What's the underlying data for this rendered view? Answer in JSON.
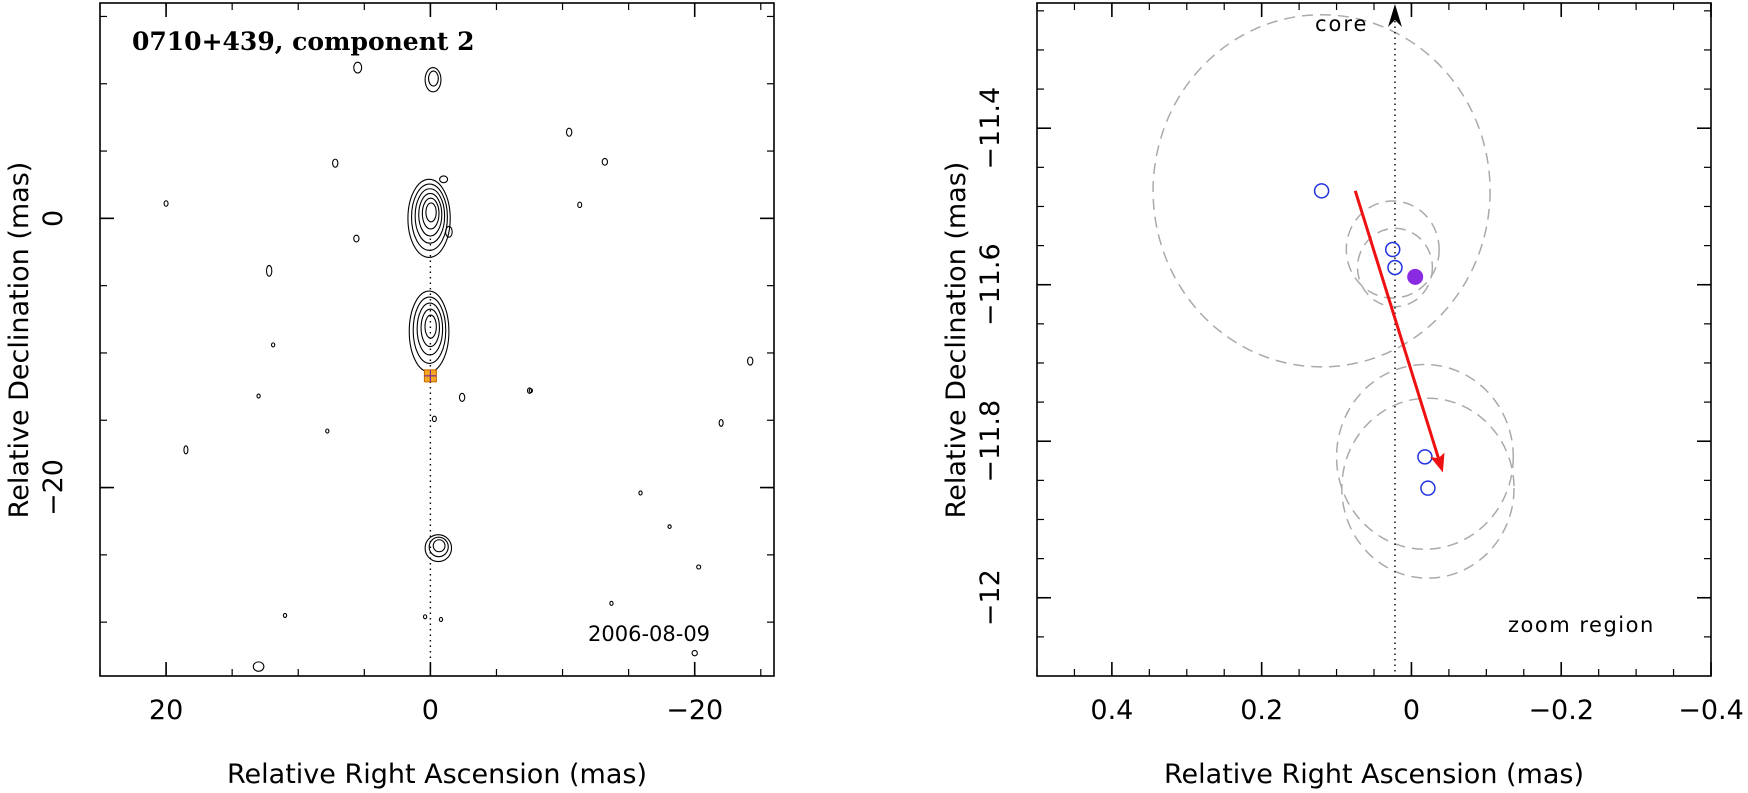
{
  "chart_data": [
    {
      "type": "scatter",
      "title": "0710+439, component 2",
      "date": "2006-08-09",
      "xlabel": "Relative Right Ascension (mas)",
      "ylabel": "Relative Declination (mas)",
      "xlim": [
        25,
        -26
      ],
      "ylim": [
        -34,
        16
      ],
      "x_reversed": true,
      "xticks": [
        "20",
        "0",
        "−20"
      ],
      "yticks": [
        "0",
        "−20"
      ],
      "xtick_values": [
        20,
        0,
        -20
      ],
      "ytick_values": [
        0,
        -20
      ],
      "reference_line": {
        "x": 0,
        "style": "dotted"
      },
      "marker": {
        "x": 0,
        "y": -11.7,
        "shape": "square",
        "color": "#f5a623"
      },
      "contour_blobs": [
        {
          "x": 0.1,
          "y": 0.0,
          "rx": 1.6,
          "ry": 2.9,
          "levels": 6
        },
        {
          "x": 0.1,
          "y": -8.4,
          "rx": 1.5,
          "ry": 3.0,
          "levels": 5
        },
        {
          "x": -0.6,
          "y": -24.5,
          "rx": 1.0,
          "ry": 1.0,
          "levels": 3
        },
        {
          "x": -0.2,
          "y": 10.3,
          "rx": 0.6,
          "ry": 0.9,
          "levels": 2
        },
        {
          "x": 5.5,
          "y": 11.2,
          "rx": 0.3,
          "ry": 0.4,
          "levels": 1
        },
        {
          "x": -1.0,
          "y": 2.9,
          "rx": 0.3,
          "ry": 0.25,
          "levels": 1
        },
        {
          "x": 7.2,
          "y": 4.1,
          "rx": 0.2,
          "ry": 0.3,
          "levels": 1
        },
        {
          "x": -10.5,
          "y": 6.4,
          "rx": 0.2,
          "ry": 0.3,
          "levels": 1
        },
        {
          "x": -13.2,
          "y": 4.2,
          "rx": 0.2,
          "ry": 0.25,
          "levels": 1
        },
        {
          "x": -11.3,
          "y": 1.0,
          "rx": 0.15,
          "ry": 0.2,
          "levels": 1
        },
        {
          "x": 5.6,
          "y": -1.5,
          "rx": 0.2,
          "ry": 0.25,
          "levels": 1
        },
        {
          "x": -1.4,
          "y": -1.0,
          "rx": 0.25,
          "ry": 0.4,
          "levels": 1
        },
        {
          "x": -2.4,
          "y": -13.3,
          "rx": 0.2,
          "ry": 0.3,
          "levels": 1
        },
        {
          "x": 20.0,
          "y": 1.1,
          "rx": 0.15,
          "ry": 0.2,
          "levels": 1
        },
        {
          "x": -7.5,
          "y": -12.8,
          "rx": 0.15,
          "ry": 0.2,
          "levels": 1
        },
        {
          "x": -22.0,
          "y": -15.2,
          "rx": 0.15,
          "ry": 0.25,
          "levels": 1
        },
        {
          "x": -24.2,
          "y": -10.6,
          "rx": 0.2,
          "ry": 0.3,
          "levels": 1
        },
        {
          "x": 18.5,
          "y": -17.2,
          "rx": 0.15,
          "ry": 0.3,
          "levels": 1
        },
        {
          "x": 7.8,
          "y": -15.8,
          "rx": 0.1,
          "ry": 0.15,
          "levels": 1
        },
        {
          "x": -0.3,
          "y": -14.9,
          "rx": 0.15,
          "ry": 0.2,
          "levels": 1
        },
        {
          "x": -15.9,
          "y": -20.4,
          "rx": 0.12,
          "ry": 0.15,
          "levels": 1
        },
        {
          "x": 12.2,
          "y": -3.9,
          "rx": 0.2,
          "ry": 0.4,
          "levels": 1
        },
        {
          "x": 13.0,
          "y": -13.2,
          "rx": 0.1,
          "ry": 0.15,
          "levels": 1
        },
        {
          "x": 13.0,
          "y": -33.3,
          "rx": 0.4,
          "ry": 0.35,
          "levels": 1
        },
        {
          "x": -20.3,
          "y": -25.9,
          "rx": 0.15,
          "ry": 0.15,
          "levels": 1
        },
        {
          "x": -18.1,
          "y": -22.9,
          "rx": 0.1,
          "ry": 0.12,
          "levels": 1
        },
        {
          "x": -20.0,
          "y": -32.3,
          "rx": 0.2,
          "ry": 0.2,
          "levels": 1
        },
        {
          "x": -13.7,
          "y": -28.6,
          "rx": 0.12,
          "ry": 0.15,
          "levels": 1
        },
        {
          "x": 11.0,
          "y": -29.5,
          "rx": 0.12,
          "ry": 0.15,
          "levels": 1
        },
        {
          "x": -0.8,
          "y": -29.8,
          "rx": 0.12,
          "ry": 0.15,
          "levels": 1
        },
        {
          "x": -7.6,
          "y": -12.8,
          "rx": 0.12,
          "ry": 0.15,
          "levels": 1
        },
        {
          "x": 11.9,
          "y": -9.4,
          "rx": 0.12,
          "ry": 0.15,
          "levels": 1
        },
        {
          "x": 0.4,
          "y": -29.6,
          "rx": 0.12,
          "ry": 0.15,
          "levels": 1
        }
      ]
    },
    {
      "type": "scatter",
      "xlabel": "Relative Right Ascension (mas)",
      "ylabel": "Relative Declination (mas)",
      "annotation_core": "core",
      "annotation_zoom": "zoom region",
      "xlim": [
        0.5,
        -0.4
      ],
      "ylim": [
        -12.1,
        -11.24
      ],
      "x_reversed": true,
      "xticks": [
        "0.4",
        "0.2",
        "0",
        "−0.2",
        "−0.4"
      ],
      "xtick_values": [
        0.4,
        0.2,
        0,
        -0.2,
        -0.4
      ],
      "yticks": [
        "−11.4",
        "−11.6",
        "−11.8",
        "−12"
      ],
      "ytick_values": [
        -11.4,
        -11.6,
        -11.8,
        -12.0
      ],
      "core_line": {
        "x": 0.022
      },
      "open_points": [
        {
          "x": 0.12,
          "y": -11.48
        },
        {
          "x": 0.025,
          "y": -11.555
        },
        {
          "x": 0.022,
          "y": -11.578
        },
        {
          "x": -0.018,
          "y": -11.82
        },
        {
          "x": -0.022,
          "y": -11.86
        }
      ],
      "filled_point": {
        "x": -0.005,
        "y": -11.59,
        "color": "#8a2be2"
      },
      "uncertainty_circles": [
        {
          "x": 0.12,
          "y": -11.48,
          "r": 0.225
        },
        {
          "x": 0.025,
          "y": -11.555,
          "r": 0.062
        },
        {
          "x": 0.022,
          "y": -11.578,
          "r": 0.05
        },
        {
          "x": -0.018,
          "y": -11.82,
          "r": 0.118
        },
        {
          "x": -0.022,
          "y": -11.86,
          "r": 0.115
        }
      ],
      "arrow": {
        "x1": 0.075,
        "y1": -11.48,
        "x2": -0.042,
        "y2": -11.84,
        "color": "#ee1111"
      },
      "colors": {
        "open_points": "#2233dd",
        "circles": "#aaaaaa"
      }
    }
  ]
}
